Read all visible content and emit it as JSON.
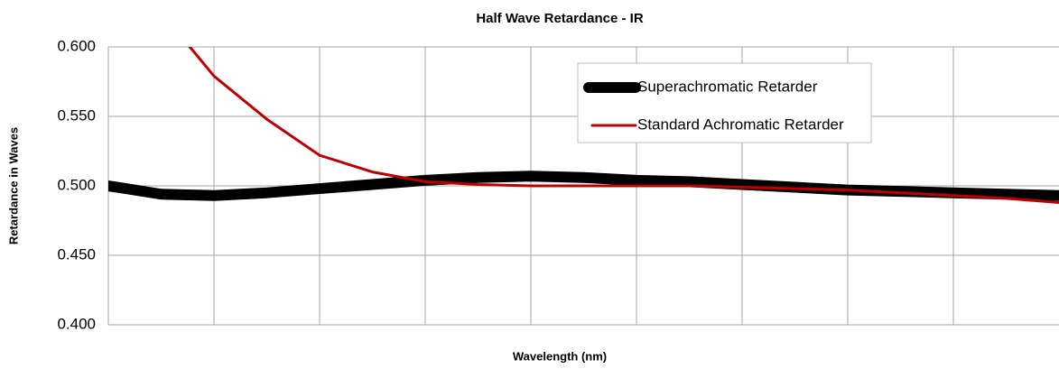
{
  "chart_data": {
    "type": "line",
    "title": "Half Wave Retardance - IR",
    "x_label": "Wavelength (nm)",
    "y_label": "Retardance in Waves",
    "x": [
      0,
      0.5,
      1,
      1.5,
      2,
      2.5,
      3,
      3.5,
      4,
      4.5,
      5,
      5.5,
      6,
      6.5,
      7,
      7.5,
      8,
      8.5,
      9
    ],
    "series": [
      {
        "name": "Superachromatic Retarder",
        "color": "#000000",
        "values": [
          0.5,
          0.494,
          0.493,
          0.495,
          0.498,
          0.501,
          0.504,
          0.506,
          0.507,
          0.506,
          0.504,
          0.503,
          0.501,
          0.499,
          0.497,
          0.496,
          0.495,
          0.494,
          0.493
        ]
      },
      {
        "name": "Standard Achromatic Retarder",
        "color": "#c00000",
        "values": [
          null,
          0.625,
          0.579,
          0.548,
          0.522,
          0.51,
          0.503,
          0.501,
          0.5,
          0.5,
          0.5,
          0.5,
          0.499,
          0.498,
          0.497,
          0.495,
          0.493,
          0.491,
          0.488
        ]
      }
    ],
    "xlim": [
      0,
      9
    ],
    "xticks": [
      1,
      2,
      3,
      4,
      5,
      6,
      7,
      8
    ],
    "ylim": [
      0.4,
      0.6
    ],
    "yticks": [
      {
        "value": 0.4,
        "label": "0.400"
      },
      {
        "value": 0.45,
        "label": "0.450"
      },
      {
        "value": 0.5,
        "label": "0.500"
      },
      {
        "value": 0.55,
        "label": "0.550"
      },
      {
        "value": 0.6,
        "label": "0.600"
      }
    ],
    "grid": true,
    "legend": "top-right"
  }
}
